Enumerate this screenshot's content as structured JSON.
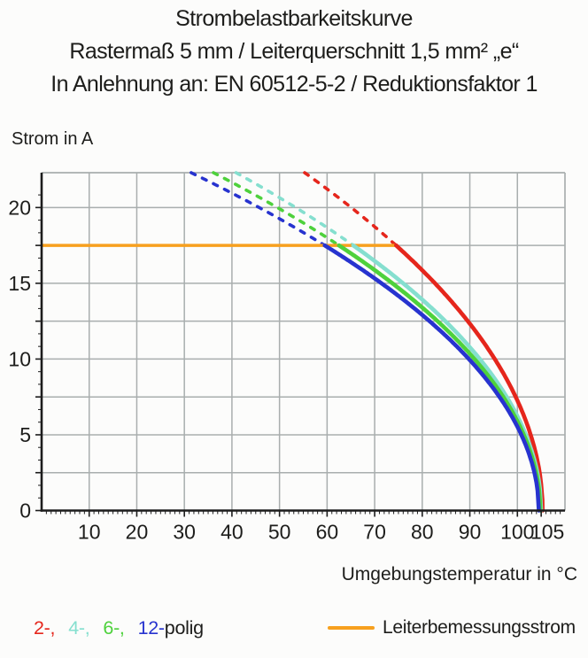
{
  "title": {
    "line1": "Strombelastbarkeitskurve",
    "line2": "Rastermaß 5 mm / Leiterquerschnitt 1,5 mm² „e“",
    "line3": "In Anlehnung an: EN 60512-5-2 / Reduktionsfaktor 1"
  },
  "chart_data": {
    "type": "line",
    "title": "Strombelastbarkeitskurve",
    "ylabel": "Strom in A",
    "xlabel": "Umgebungstemperatur in °C",
    "xlim": [
      0,
      110
    ],
    "ylim": [
      0,
      22.3
    ],
    "x_major_ticks": [
      10,
      20,
      30,
      40,
      50,
      60,
      70,
      80,
      90,
      100,
      105
    ],
    "x_minor_tick_step": 1,
    "y_grid_step": 2.5,
    "y_tick_labels": [
      0,
      5,
      10,
      15,
      20
    ],
    "grid": true,
    "colors": {
      "grid": "#a9aeae",
      "axis": "#1c1c1c",
      "text": "#1d1d1b"
    },
    "rated_line": {
      "label": "Leiterbemessungsstrom",
      "current_a": 17.5,
      "color": "#f7a01e",
      "x_start_c": 0,
      "x_end_c": 74.5
    },
    "curve_model": "I(T) = rated_current × sqrt((T_zero − T)/(T_zero − T_knee)); dashed above rated current, solid below",
    "series": [
      {
        "name": "2-polig",
        "color": "#e5261c",
        "knee_temp_c": 74.5,
        "zero_current_temp_c": 105.3
      },
      {
        "name": "4-polig",
        "color": "#85dfcf",
        "knee_temp_c": 65.5,
        "zero_current_temp_c": 105.0
      },
      {
        "name": "6-polig",
        "color": "#4ed13c",
        "knee_temp_c": 62.5,
        "zero_current_temp_c": 104.8
      },
      {
        "name": "12-polig",
        "color": "#2733cf",
        "knee_temp_c": 59.5,
        "zero_current_temp_c": 104.5
      }
    ]
  },
  "legend": {
    "items": [
      {
        "label": "2-,",
        "color": "#e5261c"
      },
      {
        "label": "4-,",
        "color": "#85dfcf"
      },
      {
        "label": "6-,",
        "color": "#4ed13c"
      },
      {
        "label": "12-",
        "color": "#2733cf"
      }
    ],
    "suffix": "polig",
    "rated": {
      "label": "Leiterbemessungsstrom",
      "color": "#f7a01e"
    }
  }
}
